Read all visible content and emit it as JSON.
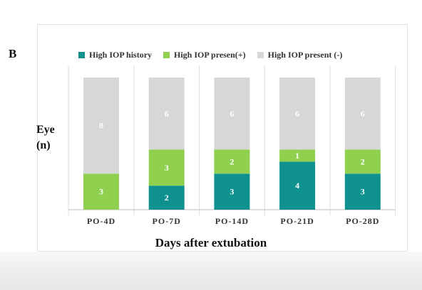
{
  "figure": {
    "panel_letter": "B"
  },
  "chart_data": {
    "type": "bar",
    "stacked": true,
    "categories": [
      "PO-4D",
      "PO-7D",
      "PO-14D",
      "PO-21D",
      "PO-28D"
    ],
    "series": [
      {
        "name": "High IOP history",
        "color": "#0f9190",
        "values": [
          0,
          2,
          3,
          4,
          3
        ]
      },
      {
        "name": "High IOP presen(+)",
        "color": "#8fd14f",
        "values": [
          3,
          3,
          2,
          1,
          2
        ]
      },
      {
        "name": "High IOP  present (-)",
        "color": "#d7d7d7",
        "values": [
          8,
          6,
          6,
          6,
          6
        ]
      }
    ],
    "ylabel_lines": [
      "Eye",
      "(n)"
    ],
    "xlabel": "Days after extubation",
    "ylim": [
      0,
      11
    ],
    "grid": false,
    "legend_position": "top"
  }
}
